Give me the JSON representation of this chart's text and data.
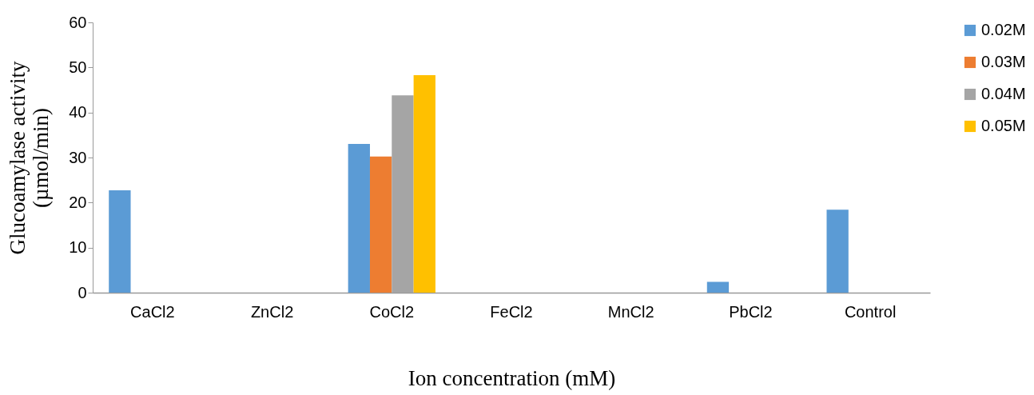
{
  "chart_data": {
    "type": "bar",
    "xlabel": "Ion concentration (mM)",
    "ylabel": "Glucoamylase activity\n(µmol/min)",
    "categories": [
      "CaCl2",
      "ZnCl2",
      "CoCl2",
      "FeCl2",
      "MnCl2",
      "PbCl2",
      "Control"
    ],
    "series": [
      {
        "name": "0.02M",
        "color": "#5b9bd5",
        "values": [
          22.7,
          null,
          33.0,
          null,
          null,
          2.4,
          18.4
        ]
      },
      {
        "name": "0.03M",
        "color": "#ed7d31",
        "values": [
          null,
          null,
          30.2,
          null,
          null,
          null,
          null
        ]
      },
      {
        "name": "0.04M",
        "color": "#a5a5a5",
        "values": [
          null,
          null,
          43.8,
          null,
          null,
          null,
          null
        ]
      },
      {
        "name": "0.05M",
        "color": "#ffc000",
        "values": [
          null,
          null,
          48.3,
          null,
          null,
          null,
          null
        ]
      }
    ],
    "ylim": [
      0,
      60
    ],
    "yticks": [
      0,
      10,
      20,
      30,
      40,
      50,
      60
    ],
    "grid": false,
    "legend": "right"
  }
}
